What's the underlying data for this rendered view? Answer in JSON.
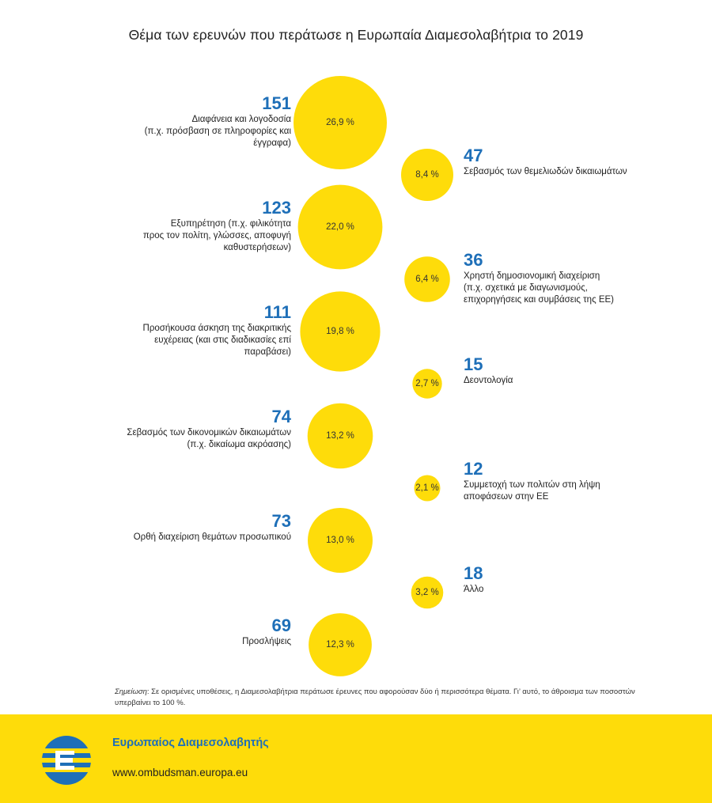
{
  "title": "Θέμα των ερευνών που περάτωσε η Ευρωπαία Διαμεσολαβήτρια το 2019",
  "chart_data": {
    "type": "bubble",
    "title": "Θέμα των ερευνών που περάτωσε η Ευρωπαία Διαμεσολαβήτρια το 2019",
    "value_unit": "%",
    "items": [
      {
        "count": "151",
        "percent": 26.9,
        "percent_label": "26,9 %",
        "side": "left",
        "label": "Διαφάνεια και λογοδοσία\n(π.χ. πρόσβαση σε πληροφορίες και\nέγγραφα)"
      },
      {
        "count": "47",
        "percent": 8.4,
        "percent_label": "8,4 %",
        "side": "right",
        "label": "Σεβασμός των θεμελιωδών δικαιωμάτων"
      },
      {
        "count": "123",
        "percent": 22.0,
        "percent_label": "22,0 %",
        "side": "left",
        "label": "Εξυπηρέτηση (π.χ. φιλικότητα\nπρος τον πολίτη, γλώσσες, αποφυγή\nκαθυστερήσεων)"
      },
      {
        "count": "36",
        "percent": 6.4,
        "percent_label": "6,4 %",
        "side": "right",
        "label": "Χρηστή δημοσιονομική διαχείριση\n(π.χ. σχετικά με διαγωνισμούς,\nεπιχορηγήσεις και συμβάσεις της ΕΕ)"
      },
      {
        "count": "111",
        "percent": 19.8,
        "percent_label": "19,8 %",
        "side": "left",
        "label": "Προσήκουσα άσκηση της διακριτικής\nευχέρειας (και στις διαδικασίες επί\nπαραβάσει)"
      },
      {
        "count": "15",
        "percent": 2.7,
        "percent_label": "2,7 %",
        "side": "right",
        "label": "Δεοντολογία"
      },
      {
        "count": "74",
        "percent": 13.2,
        "percent_label": "13,2 %",
        "side": "left",
        "label": "Σεβασμός των δικονομικών δικαιωμάτων\n(π.χ. δικαίωμα ακρόασης)"
      },
      {
        "count": "12",
        "percent": 2.1,
        "percent_label": "2,1 %",
        "side": "right",
        "label": "Συμμετοχή των πολιτών στη λήψη\nαποφάσεων στην ΕΕ"
      },
      {
        "count": "73",
        "percent": 13.0,
        "percent_label": "13,0 %",
        "side": "left",
        "label": "Ορθή διαχείριση θεμάτων προσωπικού"
      },
      {
        "count": "18",
        "percent": 3.2,
        "percent_label": "3,2 %",
        "side": "right",
        "label": "Άλλο"
      },
      {
        "count": "69",
        "percent": 12.3,
        "percent_label": "12,3 %",
        "side": "left",
        "label": "Προσλήψεις"
      }
    ]
  },
  "note": {
    "prefix": "Σημείωση",
    "text": ": Σε ορισμένες υποθέσεις, η Διαμεσολαβήτρια περάτωσε έρευνες που αφορούσαν δύο ή περισσότερα θέματα. Γι’ αυτό, το άθροισμα των ποσοστών υπερβαίνει το 100 %."
  },
  "footer": {
    "org_name": "Ευρωπαίος Διαμεσολαβητής",
    "url": "www.ombudsman.europa.eu",
    "logo_icon": "european-ombudsman-logo-icon"
  },
  "colors": {
    "bubble": "#FEDC0A",
    "count": "#1E6FB8",
    "footer_bg": "#FEDC0A"
  }
}
